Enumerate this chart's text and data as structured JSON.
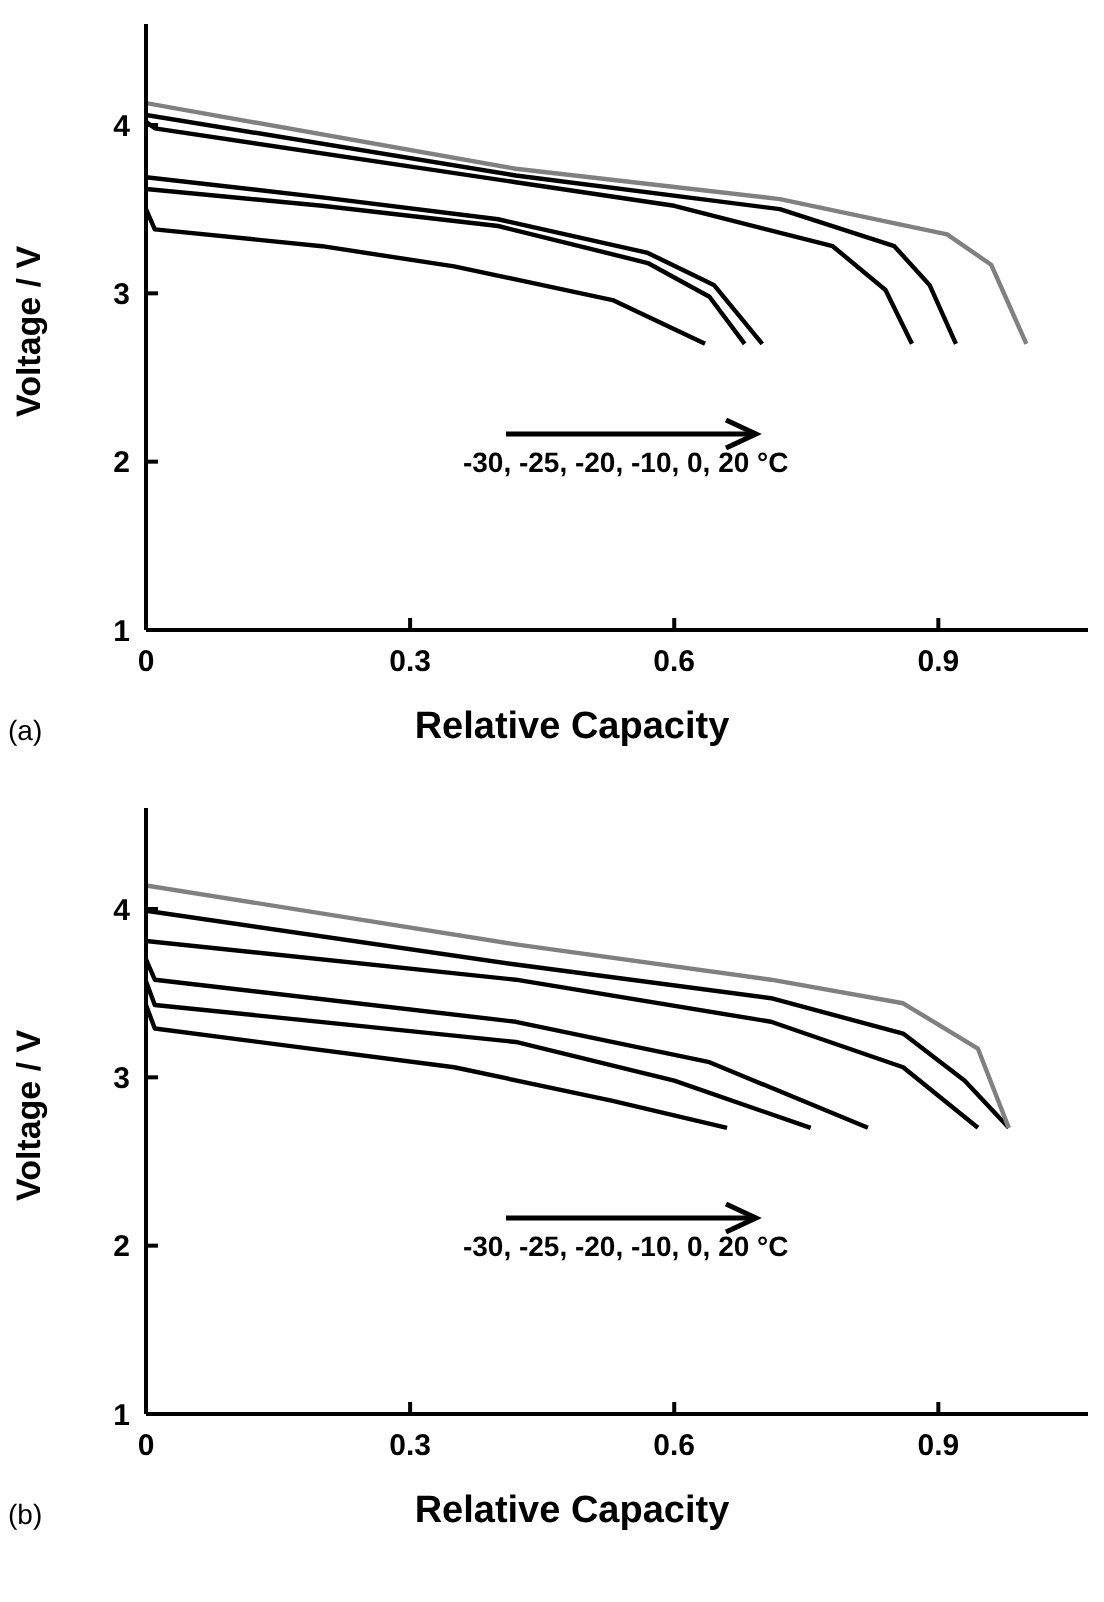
{
  "chart_data": [
    {
      "type": "line",
      "xlabel": "Relative Capacity",
      "ylabel": "Voltage / V",
      "xlim": [
        0,
        1.07
      ],
      "ylim": [
        1,
        4.6
      ],
      "xticks": [
        0,
        0.3,
        0.6,
        0.9
      ],
      "yticks": [
        1,
        2,
        3,
        4
      ],
      "legend": false,
      "grid": false,
      "marker": "none",
      "line_style": "solid",
      "annotations": [
        "-30, -25, -20, -10, 0, 20 °C",
        "(a)"
      ],
      "series": [
        {
          "color": "#000000",
          "x": [
            0,
            0.01,
            0.2,
            0.35,
            0.53,
            0.635
          ],
          "values": [
            3.5,
            3.38,
            3.28,
            3.16,
            2.96,
            2.7
          ]
        },
        {
          "color": "#000000",
          "x": [
            0,
            0.2,
            0.4,
            0.57,
            0.64,
            0.68
          ],
          "values": [
            3.62,
            3.52,
            3.4,
            3.18,
            2.98,
            2.7
          ]
        },
        {
          "color": "#000000",
          "x": [
            0,
            0.2,
            0.4,
            0.57,
            0.645,
            0.7
          ],
          "values": [
            3.69,
            3.57,
            3.44,
            3.24,
            3.05,
            2.7
          ]
        },
        {
          "color": "#000000",
          "x": [
            0,
            0.01,
            0.42,
            0.6,
            0.78,
            0.84,
            0.87
          ],
          "values": [
            4.02,
            3.98,
            3.66,
            3.52,
            3.28,
            3.02,
            2.7
          ]
        },
        {
          "color": "#000000",
          "x": [
            0,
            0.42,
            0.72,
            0.85,
            0.89,
            0.92
          ],
          "values": [
            4.06,
            3.7,
            3.5,
            3.28,
            3.05,
            2.7
          ]
        },
        {
          "color": "#808080",
          "x": [
            0,
            0.42,
            0.72,
            0.91,
            0.96,
            1.0
          ],
          "values": [
            4.13,
            3.74,
            3.56,
            3.35,
            3.17,
            2.7
          ]
        }
      ]
    },
    {
      "type": "line",
      "xlabel": "Relative Capacity",
      "ylabel": "Voltage / V",
      "xlim": [
        0,
        1.07
      ],
      "ylim": [
        1,
        4.6
      ],
      "xticks": [
        0,
        0.3,
        0.6,
        0.9
      ],
      "yticks": [
        1,
        2,
        3,
        4
      ],
      "legend": false,
      "grid": false,
      "marker": "none",
      "line_style": "solid",
      "annotations": [
        "-30, -25, -20, -10, 0, 20 °C",
        "(b)"
      ],
      "series": [
        {
          "color": "#000000",
          "x": [
            0,
            0.01,
            0.35,
            0.53,
            0.66
          ],
          "values": [
            3.43,
            3.29,
            3.06,
            2.86,
            2.7
          ]
        },
        {
          "color": "#000000",
          "x": [
            0,
            0.01,
            0.42,
            0.6,
            0.755
          ],
          "values": [
            3.57,
            3.43,
            3.21,
            2.98,
            2.7
          ]
        },
        {
          "color": "#000000",
          "x": [
            0,
            0.01,
            0.42,
            0.64,
            0.82
          ],
          "values": [
            3.7,
            3.58,
            3.33,
            3.09,
            2.7
          ]
        },
        {
          "color": "#000000",
          "x": [
            0,
            0.42,
            0.71,
            0.86,
            0.945
          ],
          "values": [
            3.81,
            3.58,
            3.33,
            3.06,
            2.7
          ]
        },
        {
          "color": "#000000",
          "x": [
            0,
            0.42,
            0.71,
            0.86,
            0.93,
            0.98
          ],
          "values": [
            3.99,
            3.67,
            3.47,
            3.26,
            2.98,
            2.7
          ]
        },
        {
          "color": "#808080",
          "x": [
            0,
            0.42,
            0.71,
            0.86,
            0.945,
            0.98
          ],
          "values": [
            4.14,
            3.79,
            3.58,
            3.44,
            3.17,
            2.7
          ]
        }
      ]
    }
  ]
}
